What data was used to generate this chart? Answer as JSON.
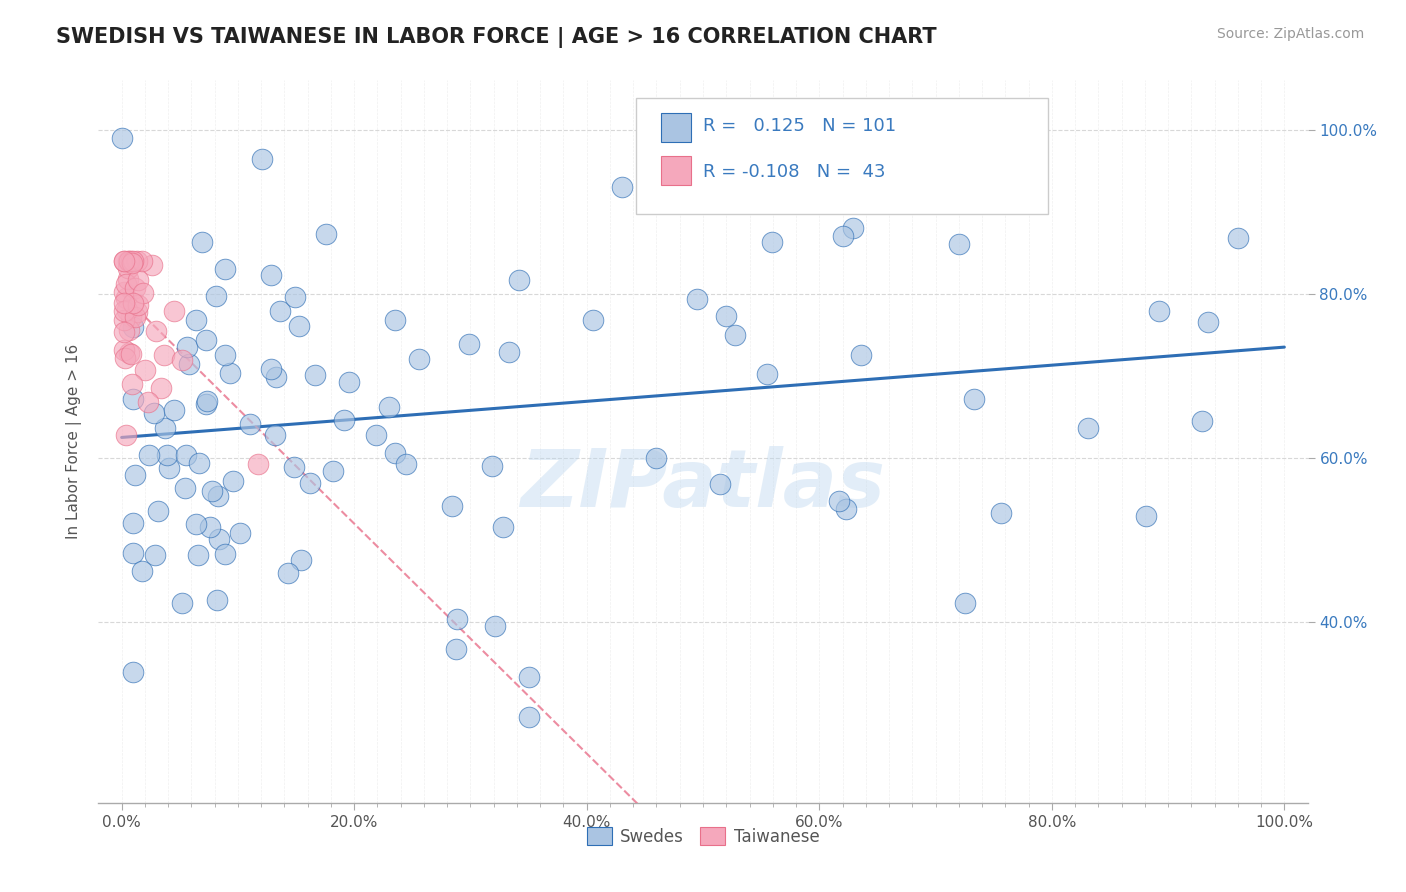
{
  "title": "SWEDISH VS TAIWANESE IN LABOR FORCE | AGE > 16 CORRELATION CHART",
  "source_text": "Source: ZipAtlas.com",
  "ylabel": "In Labor Force | Age > 16",
  "watermark": "ZIPatlas",
  "xlim": [
    -0.02,
    1.02
  ],
  "ylim": [
    0.18,
    1.06
  ],
  "xtick_labels": [
    "0.0%",
    "",
    "",
    "",
    "",
    "",
    "",
    "",
    "",
    "",
    "20.0%",
    "",
    "",
    "",
    "",
    "",
    "",
    "",
    "",
    "",
    "40.0%",
    "",
    "",
    "",
    "",
    "",
    "",
    "",
    "",
    "",
    "60.0%",
    "",
    "",
    "",
    "",
    "",
    "",
    "",
    "",
    "",
    "80.0%",
    "",
    "",
    "",
    "",
    "",
    "",
    "",
    "",
    "",
    "100.0%"
  ],
  "xtick_vals": [
    0.0,
    0.02,
    0.04,
    0.06,
    0.08,
    0.1,
    0.12,
    0.14,
    0.16,
    0.18,
    0.2,
    0.22,
    0.24,
    0.26,
    0.28,
    0.3,
    0.32,
    0.34,
    0.36,
    0.38,
    0.4,
    0.42,
    0.44,
    0.46,
    0.48,
    0.5,
    0.52,
    0.54,
    0.56,
    0.58,
    0.6,
    0.62,
    0.64,
    0.66,
    0.68,
    0.7,
    0.72,
    0.74,
    0.76,
    0.78,
    0.8,
    0.82,
    0.84,
    0.86,
    0.88,
    0.9,
    0.92,
    0.94,
    0.96,
    0.98,
    1.0
  ],
  "ytick_vals": [
    0.4,
    0.6,
    0.8,
    1.0
  ],
  "ytick_labels_right": [
    "40.0%",
    "60.0%",
    "80.0%",
    "100.0%"
  ],
  "blue_R": 0.125,
  "blue_N": 101,
  "pink_R": -0.108,
  "pink_N": 43,
  "blue_color": "#aac4e2",
  "pink_color": "#f5a8bc",
  "blue_line_color": "#2e6eb5",
  "pink_line_color": "#e8708a",
  "blue_trend_x0": 0.0,
  "blue_trend_y0": 0.625,
  "blue_trend_x1": 1.0,
  "blue_trend_y1": 0.735,
  "pink_trend_x0": 0.0,
  "pink_trend_y0": 0.8,
  "pink_trend_x1": 0.2,
  "pink_trend_y1": 0.52,
  "background_color": "#ffffff",
  "grid_color": "#d8d8d8",
  "title_color": "#333333",
  "legend_label_blue": "Swedes",
  "legend_label_pink": "Taiwanese"
}
